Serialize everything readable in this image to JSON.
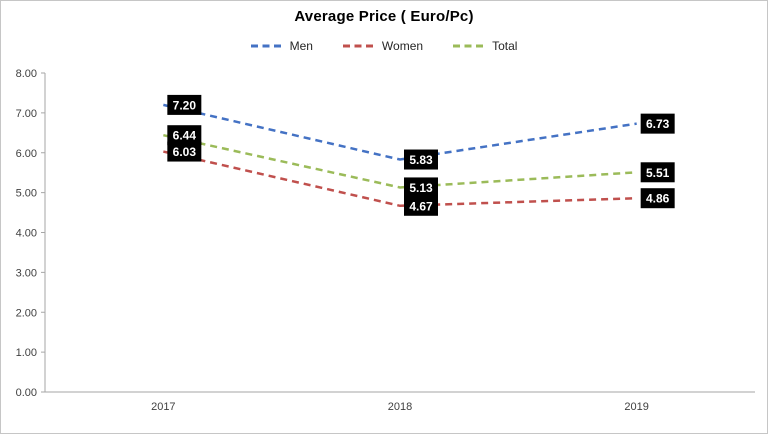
{
  "chart_data": {
    "type": "line",
    "title": "Average Price ( Euro/Pc)",
    "categories": [
      "2017",
      "2018",
      "2019"
    ],
    "series": [
      {
        "name": "Men",
        "color": "#4472C4",
        "values": [
          7.2,
          5.83,
          6.73
        ],
        "labels": [
          "7.20",
          "5.83",
          "6.73"
        ]
      },
      {
        "name": "Women",
        "color": "#C0504D",
        "values": [
          6.03,
          4.67,
          4.86
        ],
        "labels": [
          "6.03",
          "4.67",
          "4.86"
        ]
      },
      {
        "name": "Total",
        "color": "#9BBB59",
        "values": [
          6.44,
          5.13,
          5.51
        ],
        "labels": [
          "6.44",
          "5.13",
          "5.51"
        ]
      }
    ],
    "ylim": [
      0,
      8
    ],
    "yticks": [
      {
        "value": 0,
        "label": "0.00"
      },
      {
        "value": 1,
        "label": "1.00"
      },
      {
        "value": 2,
        "label": "2.00"
      },
      {
        "value": 3,
        "label": "3.00"
      },
      {
        "value": 4,
        "label": "4.00"
      },
      {
        "value": 5,
        "label": "5.00"
      },
      {
        "value": 6,
        "label": "6.00"
      },
      {
        "value": 7,
        "label": "7.00"
      },
      {
        "value": 8,
        "label": "8.00"
      }
    ],
    "legend_position": "top",
    "grid": false,
    "line_style": "dashed",
    "axis_color": "#A6A6A6",
    "data_label_style": {
      "bg": "#000000",
      "fg": "#FFFFFF"
    }
  }
}
